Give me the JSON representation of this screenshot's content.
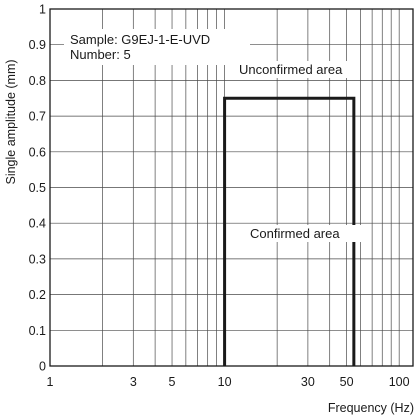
{
  "chart_data": {
    "type": "line",
    "xlabel": "Frequency (Hz)",
    "ylabel": "Single amplitude (mm)",
    "xscale": "log",
    "xlim": [
      1,
      120
    ],
    "ylim": [
      0,
      1
    ],
    "xticks": [
      {
        "value": 1,
        "label": "1"
      },
      {
        "value": 3,
        "label": "3"
      },
      {
        "value": 5,
        "label": "5"
      },
      {
        "value": 10,
        "label": "10"
      },
      {
        "value": 30,
        "label": "30"
      },
      {
        "value": 50,
        "label": "50"
      },
      {
        "value": 100,
        "label": "100"
      }
    ],
    "yticks": [
      {
        "value": 0,
        "label": "0"
      },
      {
        "value": 0.1,
        "label": "0.1"
      },
      {
        "value": 0.2,
        "label": "0.2"
      },
      {
        "value": 0.3,
        "label": "0.3"
      },
      {
        "value": 0.4,
        "label": "0.4"
      },
      {
        "value": 0.5,
        "label": "0.5"
      },
      {
        "value": 0.6,
        "label": "0.6"
      },
      {
        "value": 0.7,
        "label": "0.7"
      },
      {
        "value": 0.8,
        "label": "0.8"
      },
      {
        "value": 0.9,
        "label": "0.9"
      },
      {
        "value": 1,
        "label": "1"
      }
    ],
    "grid": true,
    "series": [
      {
        "x": [
          10,
          10,
          55,
          55
        ],
        "y": [
          0,
          0.75,
          0.75,
          0
        ]
      }
    ],
    "annotations": {
      "sample": "Sample: G9EJ-1-E-UVD",
      "number": "Number: 5",
      "unconfirmed": "Unconfirmed area",
      "confirmed": "Confirmed area"
    }
  }
}
